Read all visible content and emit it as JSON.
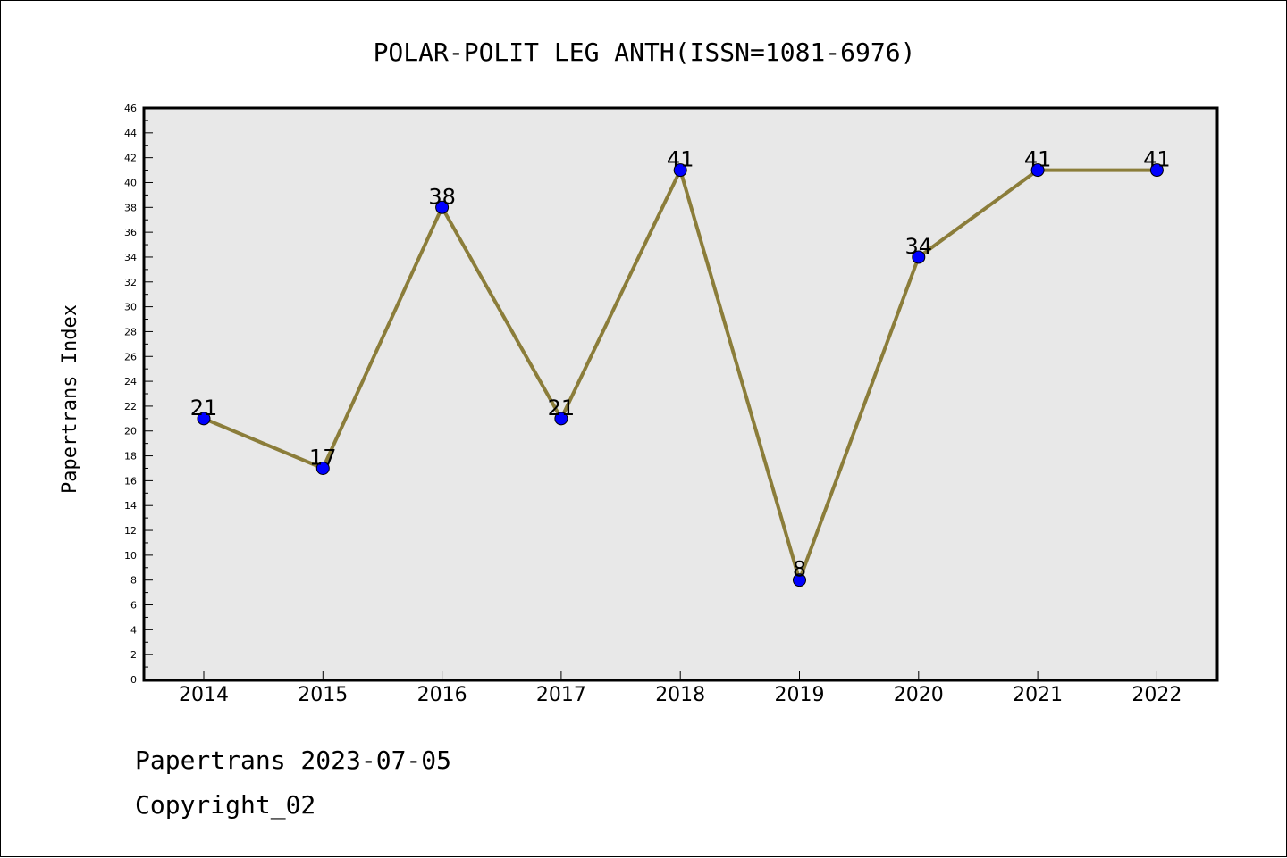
{
  "chart_data": {
    "type": "line",
    "title": "POLAR-POLIT LEG ANTH(ISSN=1081-6976)",
    "xlabel": "",
    "ylabel": "Papertrans Index",
    "categories": [
      "2014",
      "2015",
      "2016",
      "2017",
      "2018",
      "2019",
      "2020",
      "2021",
      "2022"
    ],
    "series": [
      {
        "values": [
          21,
          17,
          38,
          21,
          41,
          8,
          34,
          41,
          41
        ]
      }
    ],
    "ylim": [
      0,
      46
    ],
    "ytick_step": 2,
    "grid": false,
    "legend": "none",
    "colors": {
      "line": "#8b7d3a",
      "marker": "#0000ff",
      "plot_background": "#e8e8e8"
    }
  },
  "footer": {
    "line1": "Papertrans 2023-07-05",
    "line2": "Copyright_02"
  }
}
